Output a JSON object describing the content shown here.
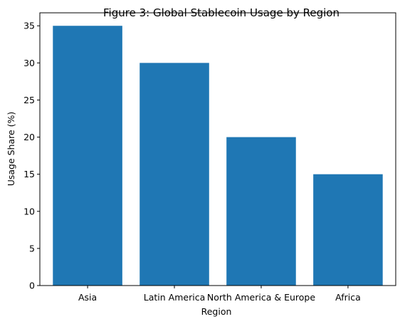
{
  "chart_data": {
    "type": "bar",
    "title": "Figure 3: Global Stablecoin Usage by Region",
    "xlabel": "Region",
    "ylabel": "Usage Share (%)",
    "categories": [
      "Asia",
      "Latin America",
      "North America & Europe",
      "Africa"
    ],
    "values": [
      35,
      30,
      20,
      15
    ],
    "ylim": [
      0,
      36.75
    ],
    "yticks": [
      0,
      5,
      10,
      15,
      20,
      25,
      30,
      35
    ],
    "grid": false,
    "legend": "none",
    "bar_color": "#1f77b4"
  }
}
